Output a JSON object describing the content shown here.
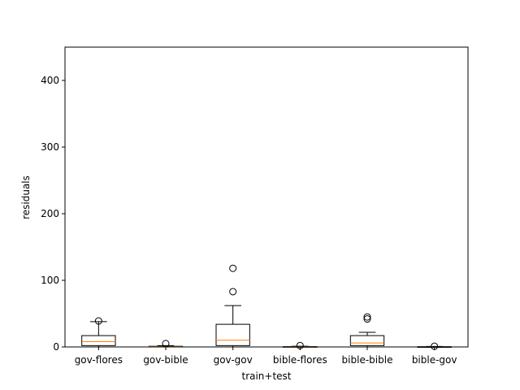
{
  "chart_data": {
    "type": "box",
    "xlabel": "train+test",
    "ylabel": "residuals",
    "ylim": [
      0,
      450
    ],
    "yticks": [
      0,
      100,
      200,
      300,
      400
    ],
    "grid": false,
    "categories": [
      "gov-flores",
      "gov-bible",
      "gov-gov",
      "bible-flores",
      "bible-bible",
      "bible-gov"
    ],
    "boxes": [
      {
        "category": "gov-flores",
        "whisker_low": 0,
        "q1": 2,
        "median": 8,
        "q3": 17,
        "whisker_high": 38,
        "outliers": [
          39
        ]
      },
      {
        "category": "gov-bible",
        "whisker_low": 0,
        "q1": 0,
        "median": 0.5,
        "q3": 1,
        "whisker_high": 2,
        "outliers": [
          5
        ]
      },
      {
        "category": "gov-gov",
        "whisker_low": 0,
        "q1": 2,
        "median": 10,
        "q3": 34,
        "whisker_high": 62,
        "outliers": [
          83,
          118
        ]
      },
      {
        "category": "bible-flores",
        "whisker_low": 0,
        "q1": 0,
        "median": 0.3,
        "q3": 0.6,
        "whisker_high": 1,
        "outliers": [
          2
        ]
      },
      {
        "category": "bible-bible",
        "whisker_low": 0,
        "q1": 2,
        "median": 6,
        "q3": 17,
        "whisker_high": 22,
        "outliers": [
          42,
          45
        ]
      },
      {
        "category": "bible-gov",
        "whisker_low": 0,
        "q1": 0,
        "median": 0.2,
        "q3": 0.4,
        "whisker_high": 0.8,
        "outliers": [
          1
        ]
      }
    ],
    "colors": {
      "box": "#000000",
      "median": "#ff7f0e",
      "outlier": "#000000"
    }
  }
}
